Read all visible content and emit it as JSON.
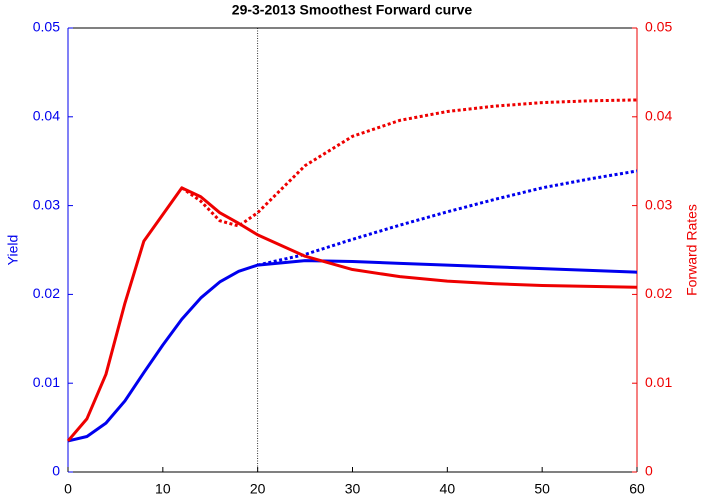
{
  "chart_data": {
    "type": "line",
    "title": "29-3-2013    Smoothest Forward curve",
    "ylabel": "Yield",
    "y2label": "Forward Rates",
    "x": [
      0,
      2,
      4,
      6,
      8,
      10,
      12,
      14,
      16,
      18,
      20,
      25,
      30,
      35,
      40,
      45,
      50,
      55,
      60
    ],
    "series": [
      {
        "color": "#0000ee",
        "style": "solid",
        "axis": "y",
        "values": [
          0.0035,
          0.004,
          0.0055,
          0.008,
          0.0112,
          0.0143,
          0.0172,
          0.0196,
          0.0214,
          0.0226,
          0.0233,
          0.0238,
          0.0237,
          0.0235,
          0.0233,
          0.0231,
          0.0229,
          0.0227,
          0.0225
        ]
      },
      {
        "color": "#0000ee",
        "style": "dotted",
        "axis": "y",
        "values": [
          null,
          null,
          null,
          null,
          null,
          null,
          null,
          null,
          null,
          null,
          0.0233,
          0.0245,
          0.0262,
          0.0278,
          0.0293,
          0.0307,
          0.032,
          0.033,
          0.0339
        ]
      },
      {
        "color": "#ee0000",
        "style": "solid",
        "axis": "y2",
        "values": [
          0.0035,
          0.006,
          0.011,
          0.019,
          0.026,
          0.029,
          0.032,
          0.031,
          0.0292,
          0.028,
          0.0267,
          0.0243,
          0.0228,
          0.022,
          0.0215,
          0.0212,
          0.021,
          0.0209,
          0.0208
        ]
      },
      {
        "color": "#ee0000",
        "style": "dotted",
        "axis": "y2",
        "values": [
          null,
          null,
          null,
          null,
          null,
          null,
          0.032,
          0.0305,
          0.0283,
          0.0277,
          0.0292,
          0.0345,
          0.0378,
          0.0396,
          0.0406,
          0.0412,
          0.0416,
          0.0418,
          0.0419
        ]
      }
    ],
    "vline": 20,
    "xlim": [
      0,
      60
    ],
    "xticks": [
      0,
      10,
      20,
      30,
      40,
      50,
      60
    ],
    "ylim": [
      0,
      0.05
    ],
    "yticks": [
      0,
      0.01,
      0.02,
      0.03,
      0.04,
      0.05
    ],
    "y2lim": [
      0,
      0.05
    ],
    "y2ticks": [
      0,
      0.01,
      0.02,
      0.03,
      0.04,
      0.05
    ],
    "ycolor": "#0000ee",
    "y2color": "#ee0000"
  }
}
